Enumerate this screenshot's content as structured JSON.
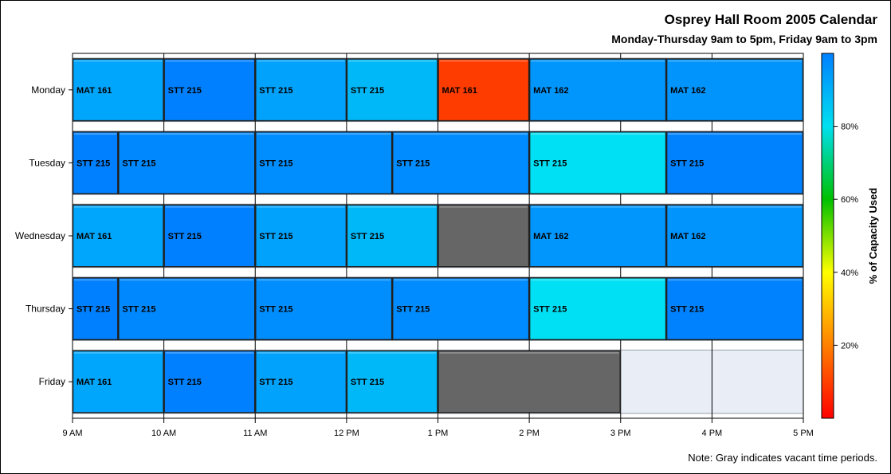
{
  "chart_data": {
    "type": "heatmap",
    "title": "Osprey Hall Room 2005 Calendar",
    "subtitle": "Monday-Thursday 9am to 5pm, Friday 9am to 3pm",
    "footnote": "Note: Gray indicates vacant time periods.",
    "colorbar_label": "% of Capacity Used",
    "colorbar_ticks": [
      "20%",
      "40%",
      "60%",
      "80%"
    ],
    "colorbar_tick_values": [
      20,
      40,
      60,
      80
    ],
    "colorbar_range": [
      0,
      100
    ],
    "colorbar_colors": [
      "#ff0000",
      "#ff8000",
      "#ffff00",
      "#00c000",
      "#00e0f0",
      "#0080ff"
    ],
    "vacant_color": "#666666",
    "unscheduled_color": "#e9edf6",
    "x_ticks": [
      "9 AM",
      "10 AM",
      "11 AM",
      "12 PM",
      "1 PM",
      "2 PM",
      "3 PM",
      "4 PM",
      "5 PM"
    ],
    "x_range": [
      9,
      17
    ],
    "days": [
      "Monday",
      "Tuesday",
      "Wednesday",
      "Thursday",
      "Friday"
    ],
    "day_end": [
      17,
      17,
      17,
      17,
      15
    ],
    "blocks": [
      {
        "day": "Monday",
        "start": 9,
        "end": 10,
        "course": "MAT 161",
        "color": "#00a6fc"
      },
      {
        "day": "Monday",
        "start": 10,
        "end": 11,
        "course": "STT 215",
        "color": "#0080fe"
      },
      {
        "day": "Monday",
        "start": 11,
        "end": 12,
        "course": "STT 215",
        "color": "#00a2fc"
      },
      {
        "day": "Monday",
        "start": 12,
        "end": 13,
        "course": "STT 215",
        "color": "#00b8f8"
      },
      {
        "day": "Monday",
        "start": 13,
        "end": 14,
        "course": "MAT 161",
        "color": "#ff3c00"
      },
      {
        "day": "Monday",
        "start": 14,
        "end": 15.5,
        "course": "MAT 162",
        "color": "#0096fc"
      },
      {
        "day": "Monday",
        "start": 15.5,
        "end": 17,
        "course": "MAT 162",
        "color": "#0094fc"
      },
      {
        "day": "Tuesday",
        "start": 9,
        "end": 9.5,
        "course": "STT 215",
        "color": "#0080fe"
      },
      {
        "day": "Tuesday",
        "start": 9.5,
        "end": 11,
        "course": "STT 215",
        "color": "#0088fe"
      },
      {
        "day": "Tuesday",
        "start": 11,
        "end": 12.5,
        "course": "STT 215",
        "color": "#008efe"
      },
      {
        "day": "Tuesday",
        "start": 12.5,
        "end": 14,
        "course": "STT 215",
        "color": "#008cfe"
      },
      {
        "day": "Tuesday",
        "start": 14,
        "end": 15.5,
        "course": "STT 215",
        "color": "#00e0f4"
      },
      {
        "day": "Tuesday",
        "start": 15.5,
        "end": 17,
        "course": "STT 215",
        "color": "#0082fe"
      },
      {
        "day": "Wednesday",
        "start": 9,
        "end": 10,
        "course": "MAT 161",
        "color": "#00a6fc"
      },
      {
        "day": "Wednesday",
        "start": 10,
        "end": 11,
        "course": "STT 215",
        "color": "#0080fe"
      },
      {
        "day": "Wednesday",
        "start": 11,
        "end": 12,
        "course": "STT 215",
        "color": "#00a2fc"
      },
      {
        "day": "Wednesday",
        "start": 12,
        "end": 13,
        "course": "STT 215",
        "color": "#00b8f8"
      },
      {
        "day": "Wednesday",
        "start": 13,
        "end": 14,
        "course": "",
        "color": "#666666"
      },
      {
        "day": "Wednesday",
        "start": 14,
        "end": 15.5,
        "course": "MAT 162",
        "color": "#0096fc"
      },
      {
        "day": "Wednesday",
        "start": 15.5,
        "end": 17,
        "course": "MAT 162",
        "color": "#0094fc"
      },
      {
        "day": "Thursday",
        "start": 9,
        "end": 9.5,
        "course": "STT 215",
        "color": "#0080fe"
      },
      {
        "day": "Thursday",
        "start": 9.5,
        "end": 11,
        "course": "STT 215",
        "color": "#0088fe"
      },
      {
        "day": "Thursday",
        "start": 11,
        "end": 12.5,
        "course": "STT 215",
        "color": "#008efe"
      },
      {
        "day": "Thursday",
        "start": 12.5,
        "end": 14,
        "course": "STT 215",
        "color": "#008cfe"
      },
      {
        "day": "Thursday",
        "start": 14,
        "end": 15.5,
        "course": "STT 215",
        "color": "#00e0f4"
      },
      {
        "day": "Thursday",
        "start": 15.5,
        "end": 17,
        "course": "STT 215",
        "color": "#0082fe"
      },
      {
        "day": "Friday",
        "start": 9,
        "end": 10,
        "course": "MAT 161",
        "color": "#00a6fc"
      },
      {
        "day": "Friday",
        "start": 10,
        "end": 11,
        "course": "STT 215",
        "color": "#0080fe"
      },
      {
        "day": "Friday",
        "start": 11,
        "end": 12,
        "course": "STT 215",
        "color": "#00a2fc"
      },
      {
        "day": "Friday",
        "start": 12,
        "end": 13,
        "course": "STT 215",
        "color": "#00b8f8"
      },
      {
        "day": "Friday",
        "start": 13,
        "end": 15,
        "course": "",
        "color": "#666666"
      }
    ]
  }
}
